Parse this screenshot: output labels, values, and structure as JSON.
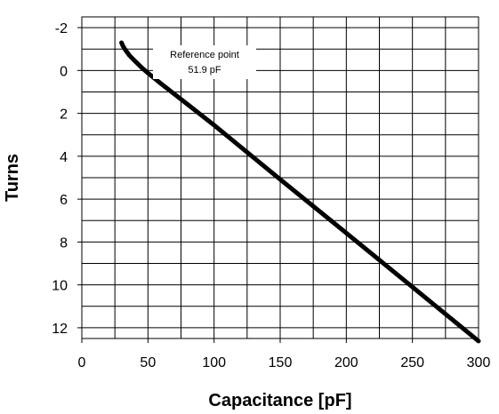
{
  "chart_data": {
    "type": "line",
    "title": "",
    "xlabel": "Capacitance [pF]",
    "ylabel": "Turns",
    "xlim": [
      0,
      300
    ],
    "ylim": [
      -2.5,
      12.5
    ],
    "y_inverted": true,
    "x_ticks": [
      0,
      50,
      100,
      150,
      200,
      250,
      300
    ],
    "y_ticks": [
      -2,
      0,
      2,
      4,
      6,
      8,
      10,
      12
    ],
    "grid": true,
    "series": [
      {
        "x": [
          30,
          31,
          33,
          36,
          40,
          45,
          50,
          60,
          80,
          100,
          150,
          200,
          250,
          300
        ],
        "y": [
          -1.3,
          -1.15,
          -0.95,
          -0.7,
          -0.45,
          -0.15,
          0.12,
          0.62,
          1.58,
          2.55,
          5.08,
          7.58,
          10.1,
          12.62
        ]
      }
    ],
    "annotations": [
      {
        "line1": "Reference point",
        "line2": "51.9 pF"
      }
    ]
  }
}
